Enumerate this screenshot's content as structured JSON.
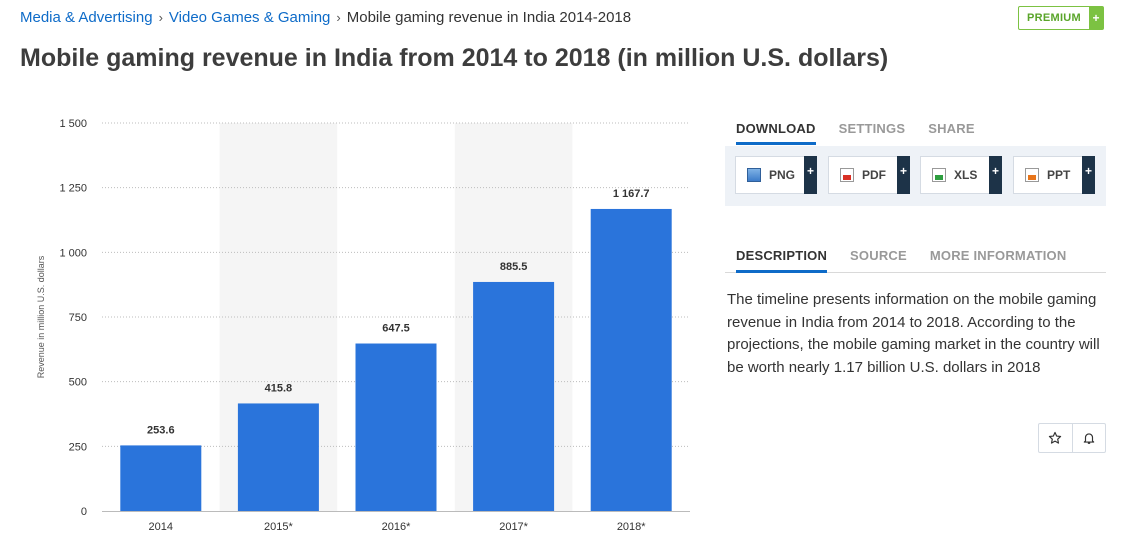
{
  "breadcrumb": {
    "items": [
      {
        "label": "Media & Advertising"
      },
      {
        "label": "Video Games & Gaming"
      },
      {
        "label": "Mobile gaming revenue in India 2014-2018"
      }
    ],
    "separator": "›"
  },
  "premium": {
    "label": "PREMIUM",
    "plus": "+"
  },
  "title": "Mobile gaming revenue in India from 2014 to 2018 (in million U.S. dollars)",
  "download_tabs": [
    "DOWNLOAD",
    "SETTINGS",
    "SHARE"
  ],
  "download_buttons": [
    {
      "label": "PNG",
      "icon": "png-file-icon"
    },
    {
      "label": "PDF",
      "icon": "pdf-file-icon"
    },
    {
      "label": "XLS",
      "icon": "xls-file-icon"
    },
    {
      "label": "PPT",
      "icon": "ppt-file-icon"
    }
  ],
  "plus_label": "+",
  "info_tabs": [
    "DESCRIPTION",
    "SOURCE",
    "MORE INFORMATION"
  ],
  "description": "The timeline presents information on the mobile gaming revenue in India from 2014 to 2018. According to the projections, the mobile gaming market in the country will be worth nearly 1.17 billion U.S. dollars in 2018",
  "actions": [
    {
      "icon": "star-icon"
    },
    {
      "icon": "bell-icon"
    }
  ],
  "colors": {
    "bar": "#2a74db",
    "link": "#0e6bc8",
    "premium": "#7cc242",
    "accent": "#0e6bc8"
  },
  "chart_data": {
    "type": "bar",
    "categories": [
      "2014",
      "2015*",
      "2016*",
      "2017*",
      "2018*"
    ],
    "values": [
      253.6,
      415.8,
      647.5,
      885.5,
      1167.7
    ],
    "value_labels": [
      "253.6",
      "415.8",
      "647.5",
      "885.5",
      "1 167.7"
    ],
    "ylabel": "Revenue in million U.S. dollars",
    "xlabel": "",
    "ylim": [
      0,
      1500
    ],
    "yticks": [
      0,
      250,
      500,
      750,
      1000,
      1250,
      1500
    ],
    "ytick_labels": [
      "0",
      "250",
      "500",
      "750",
      "1 000",
      "1 250",
      "1 500"
    ],
    "grid": true,
    "legend": "none"
  }
}
